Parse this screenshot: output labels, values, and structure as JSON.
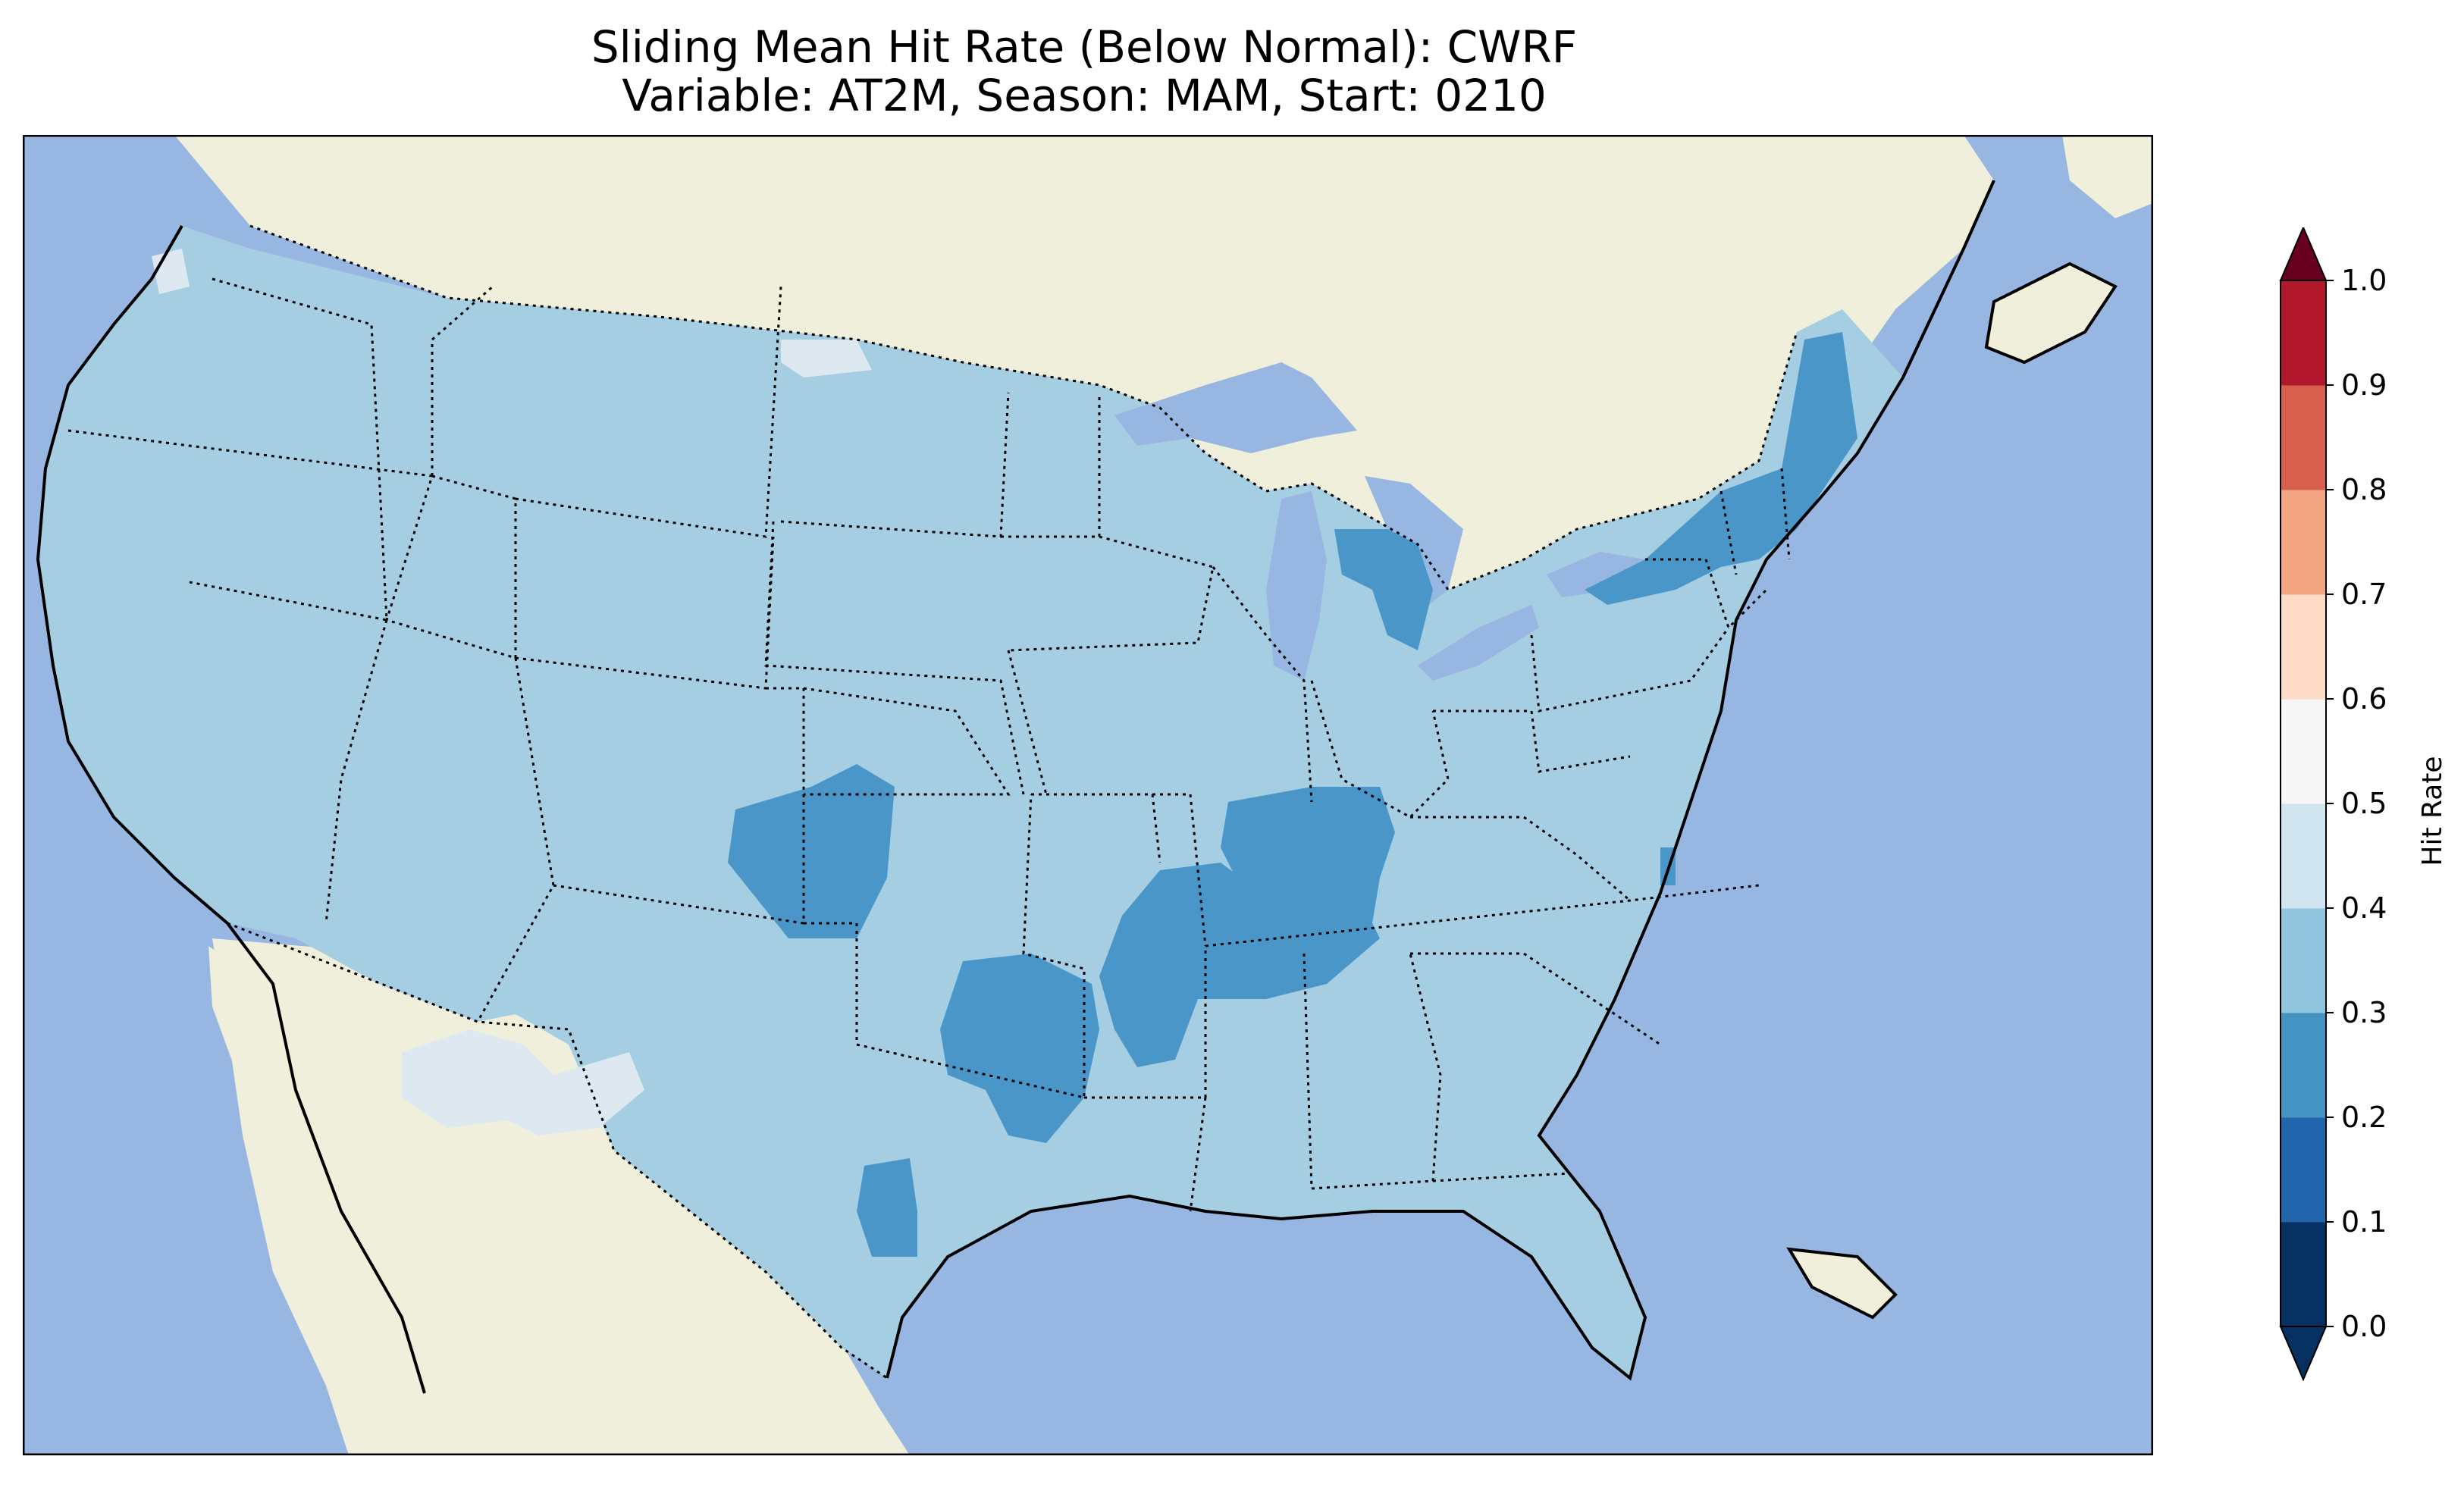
{
  "title": {
    "line1": "Sliding Mean Hit Rate (Below Normal): CWRF",
    "line2": "Variable: AT2M, Season: MAM, Start: 0210"
  },
  "colorbar": {
    "label": "Hit Rate",
    "ticks": [
      "0.0",
      "0.1",
      "0.2",
      "0.3",
      "0.4",
      "0.5",
      "0.6",
      "0.7",
      "0.8",
      "0.9",
      "1.0"
    ],
    "extend": "both",
    "segment_colors": [
      "#053061",
      "#2166ac",
      "#4393c3",
      "#92c5de",
      "#d1e5f0",
      "#f7f7f7",
      "#fddbc7",
      "#f4a582",
      "#d6604d",
      "#b2182b"
    ],
    "under_color": "#053061",
    "over_color": "#67001f"
  },
  "map": {
    "ocean_color": "#97b6e1",
    "land_color": "#efefdb",
    "base_hit_rate_color": "#a6cee3",
    "dominant_class": "0.3-0.4",
    "regions": [
      {
        "name": "Northeast",
        "class": "0.2-0.3"
      },
      {
        "name": "Michigan",
        "class": "0.2-0.3"
      },
      {
        "name": "Colorado",
        "class": "0.2-0.3"
      },
      {
        "name": "Illinois-Indiana",
        "class": "0.2-0.3"
      },
      {
        "name": "Arkansas-Missouri",
        "class": "0.2-0.3"
      },
      {
        "name": "Oklahoma",
        "class": "0.2-0.3"
      },
      {
        "name": "West Texas",
        "class": "0.2-0.3"
      },
      {
        "name": "Arizona",
        "class": "0.4-0.5"
      },
      {
        "name": "Montana-North Dakota",
        "class": "0.4-0.5"
      }
    ]
  }
}
